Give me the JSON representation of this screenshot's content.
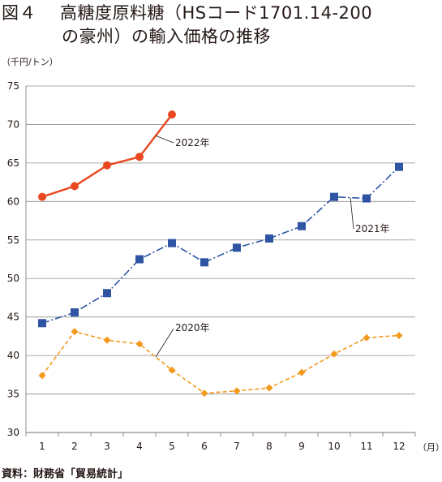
{
  "title": {
    "figure_no": "図４",
    "line1": "高糖度原料糖（HSコード1701.14-200",
    "line2": "の豪州）の輸入価格の推移"
  },
  "unit_label": "（千円/トン）",
  "x_unit_label": "（月）",
  "source": "資料：財務省「貿易統計」",
  "chart_data": {
    "type": "line",
    "categories": [
      "1",
      "2",
      "3",
      "4",
      "5",
      "6",
      "7",
      "8",
      "9",
      "10",
      "11",
      "12"
    ],
    "ylim": [
      30,
      75
    ],
    "yticks": [
      30,
      35,
      40,
      45,
      50,
      55,
      60,
      65,
      70,
      75
    ],
    "grid": "horizontal",
    "ylabel": "（千円/トン）",
    "xlabel": "（月）",
    "series": [
      {
        "name": "2022年",
        "color": "#e8471f",
        "marker": "circle",
        "dash": "solid",
        "values": [
          60.6,
          62.0,
          64.7,
          65.8,
          71.3,
          null,
          null,
          null,
          null,
          null,
          null,
          null
        ]
      },
      {
        "name": "2021年",
        "color": "#2e54a3",
        "marker": "square",
        "dash": "dashdot",
        "values": [
          44.2,
          45.6,
          48.1,
          52.5,
          54.6,
          52.1,
          54.0,
          55.2,
          56.8,
          60.6,
          60.4,
          64.5
        ]
      },
      {
        "name": "2020年",
        "color": "#f39a1e",
        "marker": "diamond",
        "dash": "dashed",
        "values": [
          37.4,
          43.1,
          42.0,
          41.5,
          38.1,
          35.1,
          35.4,
          35.8,
          37.8,
          40.2,
          42.3,
          42.6
        ]
      }
    ]
  }
}
